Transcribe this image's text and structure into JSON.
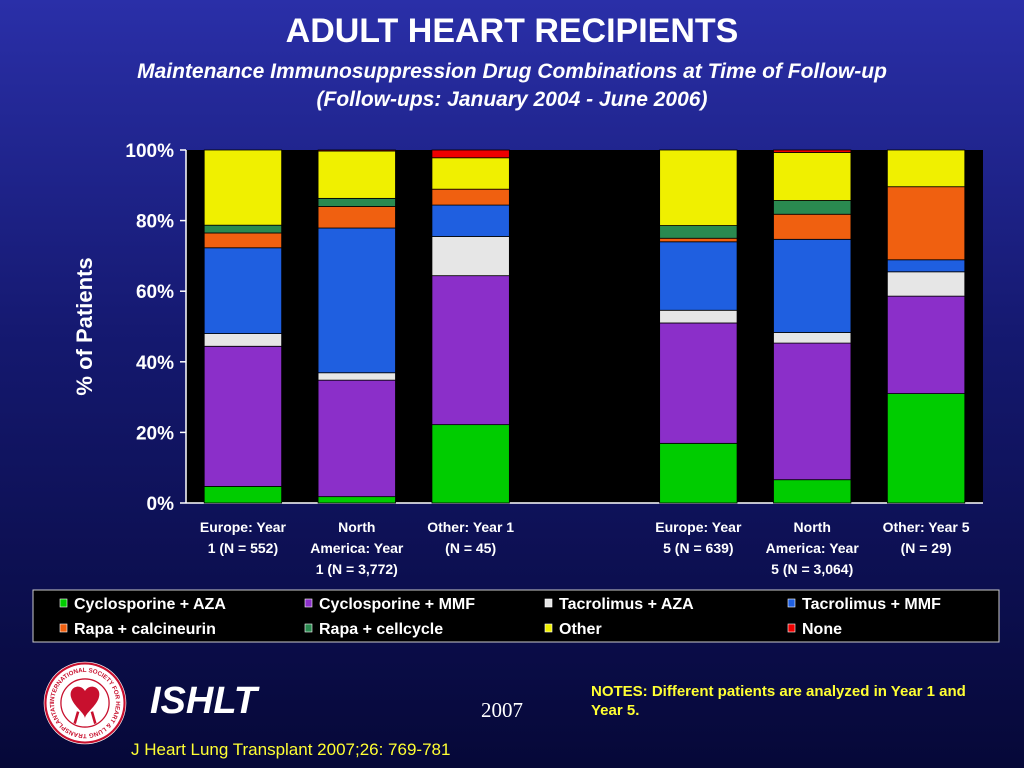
{
  "header": {
    "title": "ADULT HEART RECIPIENTS",
    "subtitle_line1": "Maintenance Immunosuppression Drug Combinations at Time of Follow-up",
    "subtitle_line2": "(Follow-ups: January 2004 - June 2006)"
  },
  "footer": {
    "org_name": "ISHLT",
    "year": "2007",
    "notes": "NOTES: Different patients are analyzed in Year 1 and Year 5.",
    "citation": "J Heart Lung Transplant 2007;26: 769-781",
    "logo_ring_text": "INTERNATIONAL SOCIETY FOR HEART & LUNG TRANSPLANTATION"
  },
  "colors": {
    "plot_background": "#000000",
    "title_text": "#ffffff",
    "notes_text": "#ffff33",
    "logo_red": "#c8102e"
  },
  "chart_data": {
    "type": "bar",
    "stacked": true,
    "title": "",
    "xlabel": "",
    "ylabel": "% of Patients",
    "ylim": [
      0,
      100
    ],
    "yticks": [
      "0%",
      "20%",
      "40%",
      "60%",
      "80%",
      "100%"
    ],
    "grid": false,
    "legend_position": "bottom",
    "categories": [
      [
        "Europe: Year",
        "1 (N = 552)"
      ],
      [
        "North",
        "America: Year",
        "1 (N = 3,772)"
      ],
      [
        "Other: Year 1",
        "(N = 45)"
      ],
      [],
      [
        "Europe: Year",
        "5 (N = 639)"
      ],
      [
        "North",
        "America: Year",
        "5 (N = 3,064)"
      ],
      [
        "Other: Year 5",
        "(N = 29)"
      ]
    ],
    "series": [
      {
        "name": "Cyclosporine + AZA",
        "color": "#00cc00",
        "values": [
          4.7,
          1.8,
          22.2,
          null,
          16.9,
          6.6,
          31.0
        ]
      },
      {
        "name": "Cyclosporine + MMF",
        "color": "#8b2fc9",
        "values": [
          39.7,
          33.0,
          42.2,
          null,
          34.1,
          38.7,
          27.6
        ]
      },
      {
        "name": "Tacrolimus + AZA",
        "color": "#e6e6e6",
        "values": [
          3.6,
          2.1,
          11.1,
          null,
          3.6,
          3.0,
          6.9
        ]
      },
      {
        "name": "Tacrolimus + MMF",
        "color": "#1f5fe0",
        "values": [
          24.3,
          41.0,
          8.9,
          null,
          19.4,
          26.4,
          3.4
        ]
      },
      {
        "name": "Rapa + calcineurin",
        "color": "#f06010",
        "values": [
          4.2,
          6.1,
          4.5,
          null,
          1.0,
          7.1,
          20.7
        ]
      },
      {
        "name": "Rapa + cellcycle",
        "color": "#2a8a50",
        "values": [
          2.2,
          2.3,
          0.0,
          null,
          3.6,
          3.9,
          0.0
        ]
      },
      {
        "name": "Other",
        "color": "#f0f000",
        "values": [
          21.3,
          13.4,
          8.9,
          null,
          21.4,
          13.6,
          10.4
        ]
      },
      {
        "name": "None",
        "color": "#ee0000",
        "values": [
          0.0,
          0.3,
          2.2,
          null,
          0.0,
          0.7,
          0.0
        ]
      }
    ]
  }
}
